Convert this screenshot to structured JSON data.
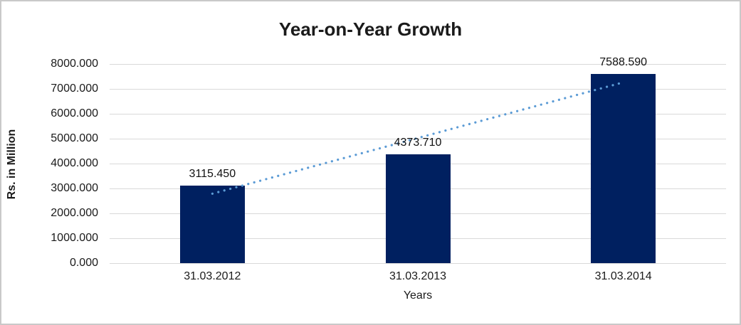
{
  "chart_data": {
    "type": "bar",
    "title": "Year-on-Year Growth",
    "xlabel": "Years",
    "ylabel": "Rs. in Million",
    "categories": [
      "31.03.2012",
      "31.03.2013",
      "31.03.2014"
    ],
    "values": [
      3115.45,
      4373.71,
      7588.59
    ],
    "data_labels": [
      "3115.450",
      "4373.710",
      "7588.590"
    ],
    "ylim": [
      0,
      8000
    ],
    "ytick_step": 1000,
    "ytick_labels": [
      "0.000",
      "1000.000",
      "2000.000",
      "3000.000",
      "4000.000",
      "5000.000",
      "6000.000",
      "7000.000",
      "8000.000"
    ],
    "grid": true,
    "legend_position": "none",
    "bar_color": "#002060",
    "gridline_color": "#d9d9d9",
    "trendline": {
      "type": "linear",
      "style": "dotted",
      "color": "#5b9bd5"
    }
  }
}
